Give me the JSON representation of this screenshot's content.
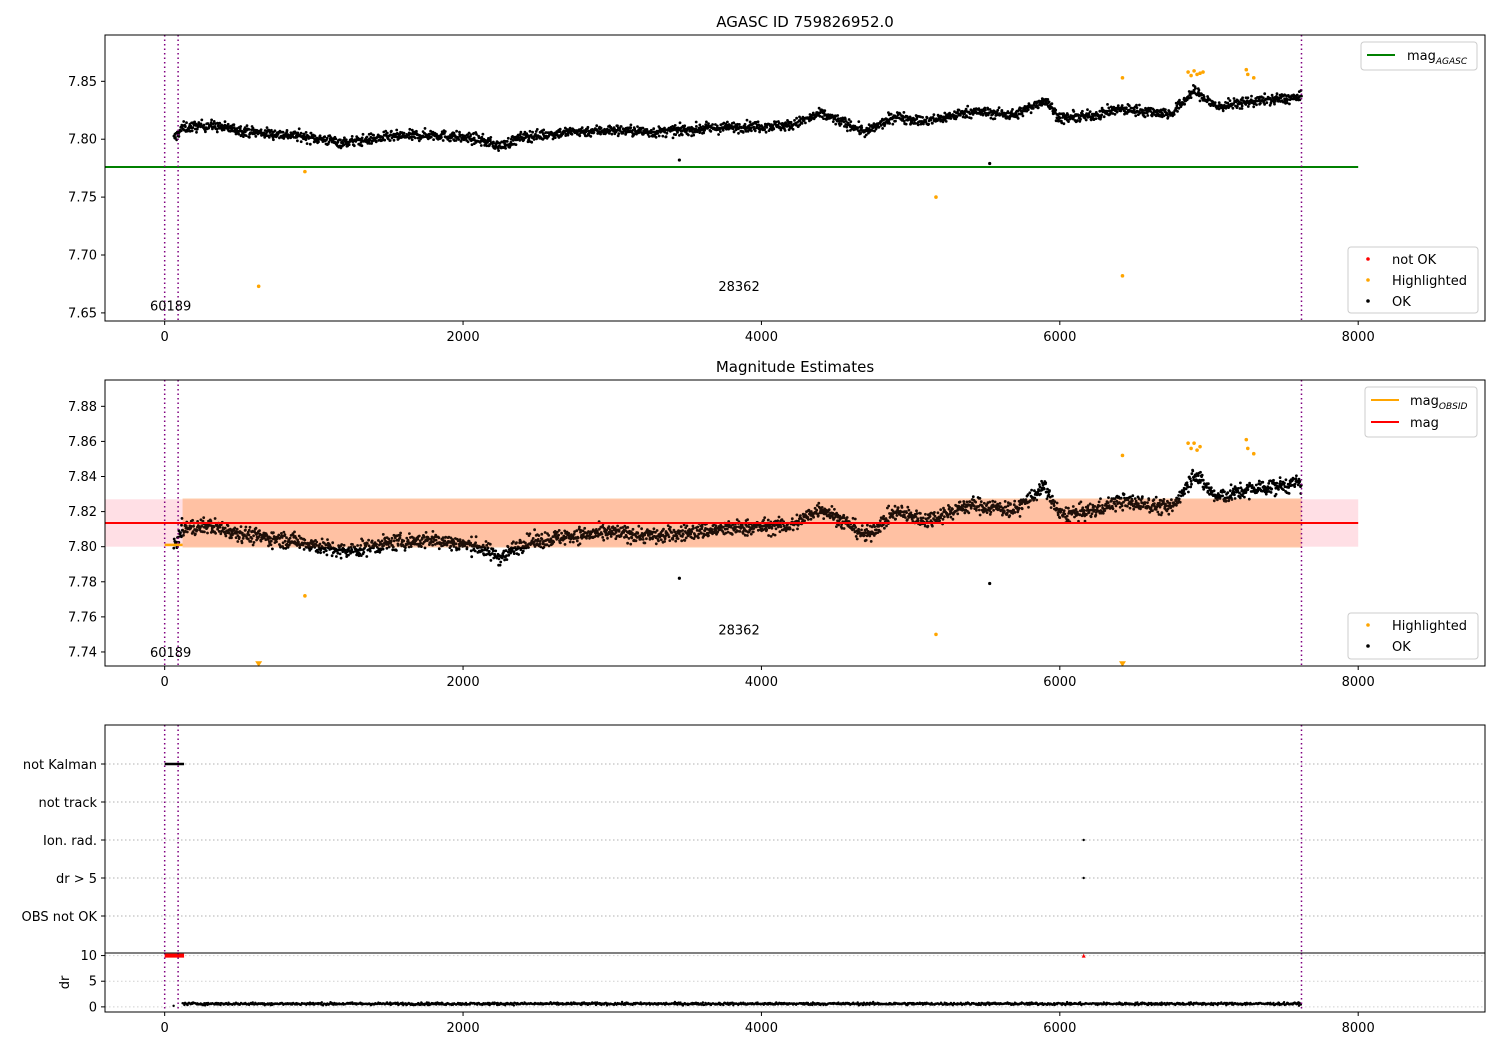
{
  "chart_data": [
    {
      "type": "scatter",
      "title": "AGASC ID 759826952.0",
      "xlim": [
        -400,
        8850
      ],
      "ylim": [
        7.643,
        7.89
      ],
      "xticks": [
        0,
        2000,
        4000,
        6000,
        8000
      ],
      "xtick_labels": [
        "0",
        "2000",
        "4000",
        "6000",
        "8000"
      ],
      "yticks": [
        7.65,
        7.7,
        7.75,
        7.8,
        7.85
      ],
      "ytick_labels": [
        "7.65",
        "7.70",
        "7.75",
        "7.80",
        "7.85"
      ],
      "vlines_x": [
        0,
        90,
        7620
      ],
      "annotations": [
        {
          "text": "60189",
          "x": 40,
          "y": 7.652
        },
        {
          "text": "28362",
          "x": 3850,
          "y": 7.669
        }
      ],
      "hline": {
        "name": "mag_AGASC",
        "y": 7.776,
        "x": [
          -400,
          8000
        ],
        "color": "#008000"
      },
      "ok_trend": [
        [
          60,
          7.8
        ],
        [
          120,
          7.81
        ],
        [
          300,
          7.812
        ],
        [
          600,
          7.806
        ],
        [
          900,
          7.803
        ],
        [
          1200,
          7.797
        ],
        [
          1500,
          7.802
        ],
        [
          1800,
          7.804
        ],
        [
          2100,
          7.8
        ],
        [
          2250,
          7.794
        ],
        [
          2400,
          7.802
        ],
        [
          2700,
          7.806
        ],
        [
          3000,
          7.808
        ],
        [
          3300,
          7.806
        ],
        [
          3600,
          7.809
        ],
        [
          3900,
          7.811
        ],
        [
          4200,
          7.812
        ],
        [
          4400,
          7.822
        ],
        [
          4600,
          7.812
        ],
        [
          4700,
          7.806
        ],
        [
          4900,
          7.82
        ],
        [
          5100,
          7.815
        ],
        [
          5400,
          7.824
        ],
        [
          5700,
          7.821
        ],
        [
          5900,
          7.834
        ],
        [
          6000,
          7.818
        ],
        [
          6200,
          7.82
        ],
        [
          6400,
          7.826
        ],
        [
          6600,
          7.824
        ],
        [
          6750,
          7.822
        ],
        [
          6900,
          7.842
        ],
        [
          7050,
          7.828
        ],
        [
          7300,
          7.833
        ],
        [
          7620,
          7.836
        ]
      ],
      "ok_x_range": [
        60,
        7620
      ],
      "ok_spread": 0.01,
      "ok_outliers": [
        [
          3450,
          7.782
        ],
        [
          5530,
          7.779
        ]
      ],
      "highlighted_points": [
        [
          940,
          7.772
        ],
        [
          630,
          7.673
        ],
        [
          5170,
          7.75
        ],
        [
          6420,
          7.682
        ],
        [
          6420,
          7.853
        ],
        [
          6860,
          7.858
        ],
        [
          6880,
          7.855
        ],
        [
          6900,
          7.859
        ],
        [
          6920,
          7.856
        ],
        [
          6940,
          7.857
        ],
        [
          6960,
          7.858
        ],
        [
          7250,
          7.86
        ],
        [
          7260,
          7.856
        ],
        [
          7300,
          7.853
        ]
      ],
      "legend_line": [
        {
          "name": "mag",
          "sub": "AGASC",
          "color": "#008000"
        }
      ],
      "legend_points": [
        {
          "name": "not OK",
          "color": "#ff0000"
        },
        {
          "name": "Highlighted",
          "color": "#ffa500"
        },
        {
          "name": "OK",
          "color": "#000000"
        }
      ]
    },
    {
      "type": "scatter",
      "title": "Magnitude Estimates",
      "xlim": [
        -400,
        8850
      ],
      "ylim": [
        7.732,
        7.895
      ],
      "xticks": [
        0,
        2000,
        4000,
        6000,
        8000
      ],
      "xtick_labels": [
        "0",
        "2000",
        "4000",
        "6000",
        "8000"
      ],
      "yticks": [
        7.74,
        7.76,
        7.78,
        7.8,
        7.82,
        7.84,
        7.86,
        7.88
      ],
      "ytick_labels": [
        "7.74",
        "7.76",
        "7.78",
        "7.80",
        "7.82",
        "7.84",
        "7.86",
        "7.88"
      ],
      "vlines_x": [
        0,
        90,
        7620
      ],
      "annotations": [
        {
          "text": "60189",
          "x": 40,
          "y": 7.737
        },
        {
          "text": "28362",
          "x": 3850,
          "y": 7.75
        }
      ],
      "mag_line": {
        "name": "mag",
        "y": 7.8135,
        "x": [
          -400,
          8000
        ],
        "color": "#ff0000"
      },
      "mag_band": {
        "y": [
          7.8,
          7.827
        ],
        "x": [
          -400,
          8000
        ]
      },
      "obs_band": {
        "y": [
          7.7995,
          7.8275
        ],
        "x": [
          120,
          7620
        ]
      },
      "obs_mag_segment": {
        "name": "mag_OBSID",
        "y": 7.801,
        "x": [
          0,
          120
        ],
        "color": "#ffa500"
      },
      "ok_trend": [
        [
          60,
          7.8
        ],
        [
          120,
          7.81
        ],
        [
          300,
          7.812
        ],
        [
          600,
          7.806
        ],
        [
          900,
          7.803
        ],
        [
          1200,
          7.797
        ],
        [
          1500,
          7.802
        ],
        [
          1800,
          7.804
        ],
        [
          2100,
          7.8
        ],
        [
          2250,
          7.794
        ],
        [
          2400,
          7.802
        ],
        [
          2700,
          7.806
        ],
        [
          3000,
          7.808
        ],
        [
          3300,
          7.806
        ],
        [
          3600,
          7.809
        ],
        [
          3900,
          7.811
        ],
        [
          4200,
          7.812
        ],
        [
          4400,
          7.822
        ],
        [
          4600,
          7.812
        ],
        [
          4700,
          7.806
        ],
        [
          4900,
          7.82
        ],
        [
          5100,
          7.815
        ],
        [
          5400,
          7.824
        ],
        [
          5700,
          7.821
        ],
        [
          5900,
          7.834
        ],
        [
          6000,
          7.818
        ],
        [
          6200,
          7.82
        ],
        [
          6400,
          7.826
        ],
        [
          6600,
          7.824
        ],
        [
          6750,
          7.822
        ],
        [
          6900,
          7.842
        ],
        [
          7050,
          7.828
        ],
        [
          7300,
          7.833
        ],
        [
          7620,
          7.836
        ]
      ],
      "ok_x_range": [
        60,
        7620
      ],
      "ok_spread": 0.01,
      "ok_outliers": [
        [
          3450,
          7.782
        ],
        [
          5530,
          7.779
        ]
      ],
      "highlighted_points": [
        [
          940,
          7.772
        ],
        [
          5170,
          7.75
        ],
        [
          6420,
          7.852
        ],
        [
          6860,
          7.859
        ],
        [
          6880,
          7.856
        ],
        [
          6900,
          7.859
        ],
        [
          6920,
          7.855
        ],
        [
          6940,
          7.857
        ],
        [
          7250,
          7.861
        ],
        [
          7260,
          7.856
        ],
        [
          7300,
          7.853
        ]
      ],
      "clipped_markers": [
        [
          630,
          7.733
        ],
        [
          6420,
          7.733
        ]
      ],
      "legend_line": [
        {
          "name": "mag",
          "sub": "OBSID",
          "color": "#ffa500"
        },
        {
          "name": "mag",
          "sub": "",
          "color": "#ff0000"
        }
      ],
      "legend_points": [
        {
          "name": "Highlighted",
          "color": "#ffa500"
        },
        {
          "name": "OK",
          "color": "#000000"
        }
      ]
    },
    {
      "type": "scatter",
      "title": "",
      "xlim": [
        -400,
        8850
      ],
      "ylevels": [
        "not Kalman",
        "not track",
        "Ion. rad.",
        "dr > 5",
        "OBS not OK"
      ],
      "vlines_x": [
        0,
        90,
        7620
      ],
      "flag_points": [
        {
          "level": "not Kalman",
          "x": [
            0,
            130
          ]
        },
        {
          "level": "Ion. rad.",
          "x": [
            6160,
            6160
          ]
        },
        {
          "level": "dr > 5",
          "x": [
            6160,
            6160
          ]
        }
      ]
    },
    {
      "type": "scatter",
      "ylabel": "dr",
      "xlim": [
        -400,
        8850
      ],
      "ylim": [
        -1,
        10.5
      ],
      "yticks": [
        0,
        5,
        10
      ],
      "ytick_labels": [
        "0",
        "5",
        "10"
      ],
      "xticks": [
        0,
        2000,
        4000,
        6000,
        8000
      ],
      "xtick_labels": [
        "0",
        "2000",
        "4000",
        "6000",
        "8000"
      ],
      "vlines_x": [
        0,
        90,
        7620
      ],
      "dr_baseline": 0.6,
      "dr_range": [
        120,
        7620
      ],
      "dr_high_points": [
        [
          0,
          130
        ],
        [
          6160,
          6160
        ]
      ],
      "dr_high_value": 10,
      "colors": {
        "ok": "#000000",
        "high": "#ff0000",
        "vline": "#800080"
      }
    }
  ]
}
